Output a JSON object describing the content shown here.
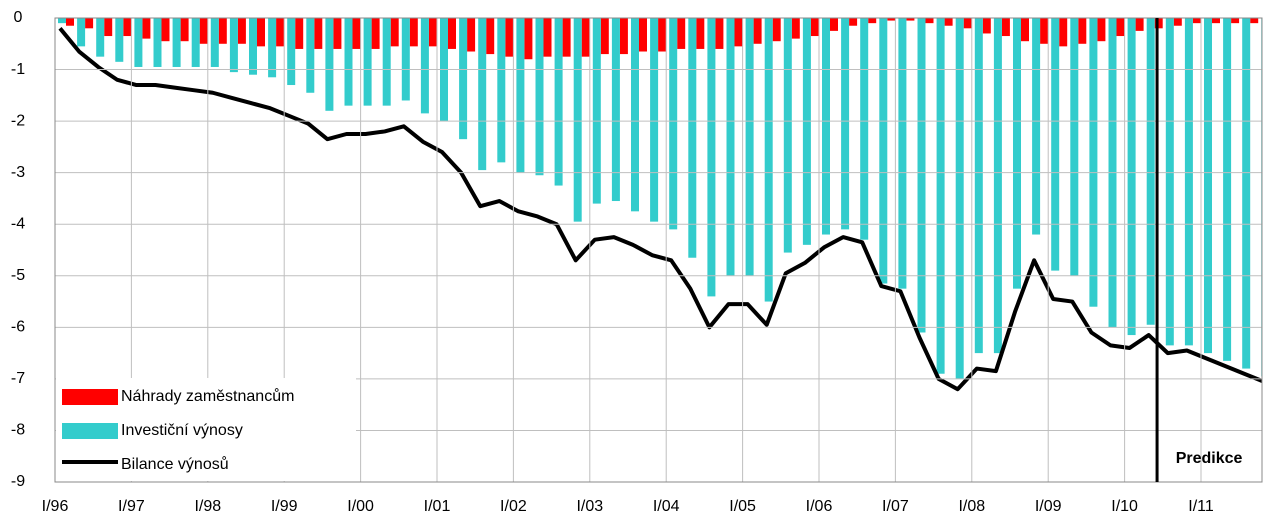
{
  "chart_data": {
    "type": "bar_line",
    "categories": [
      "I/96",
      null,
      null,
      null,
      "I/97",
      null,
      null,
      null,
      "I/98",
      null,
      null,
      null,
      "I/99",
      null,
      null,
      null,
      "I/00",
      null,
      null,
      null,
      "I/01",
      null,
      null,
      null,
      "I/02",
      null,
      null,
      null,
      "I/03",
      null,
      null,
      null,
      "I/04",
      null,
      null,
      null,
      "I/05",
      null,
      null,
      null,
      "I/06",
      null,
      null,
      null,
      "I/07",
      null,
      null,
      null,
      "I/08",
      null,
      null,
      null,
      "I/09",
      null,
      null,
      null,
      "I/10",
      null,
      null,
      null,
      "I/11",
      null,
      null,
      null
    ],
    "series": [
      {
        "name": "Náhrady zaměstnancům",
        "kind": "bar",
        "color": "#ff0000",
        "values": [
          -0.15,
          -0.2,
          -0.35,
          -0.35,
          -0.4,
          -0.45,
          -0.45,
          -0.5,
          -0.5,
          -0.5,
          -0.55,
          -0.55,
          -0.6,
          -0.6,
          -0.6,
          -0.6,
          -0.6,
          -0.55,
          -0.55,
          -0.55,
          -0.6,
          -0.65,
          -0.7,
          -0.75,
          -0.8,
          -0.75,
          -0.75,
          -0.75,
          -0.7,
          -0.7,
          -0.65,
          -0.65,
          -0.6,
          -0.6,
          -0.6,
          -0.55,
          -0.5,
          -0.45,
          -0.4,
          -0.35,
          -0.25,
          -0.15,
          -0.1,
          -0.05,
          -0.05,
          -0.1,
          -0.15,
          -0.2,
          -0.3,
          -0.35,
          -0.45,
          -0.5,
          -0.55,
          -0.5,
          -0.45,
          -0.35,
          -0.25,
          -0.2,
          -0.15,
          -0.1,
          -0.1,
          -0.1,
          -0.1,
          -0.1
        ]
      },
      {
        "name": "Investiční výnosy",
        "kind": "bar",
        "color": "#33cccc",
        "values": [
          -0.1,
          -0.55,
          -0.75,
          -0.85,
          -0.95,
          -0.95,
          -0.95,
          -0.95,
          -0.95,
          -1.05,
          -1.1,
          -1.15,
          -1.3,
          -1.45,
          -1.8,
          -1.7,
          -1.7,
          -1.7,
          -1.6,
          -1.85,
          -2.0,
          -2.35,
          -2.95,
          -2.8,
          -3.0,
          -3.05,
          -3.25,
          -3.95,
          -3.6,
          -3.55,
          -3.75,
          -3.95,
          -4.1,
          -4.65,
          -5.4,
          -5.0,
          -5.0,
          -5.5,
          -4.55,
          -4.4,
          -4.2,
          -4.1,
          -4.3,
          -5.15,
          -5.25,
          -6.1,
          -6.9,
          -7.0,
          -6.5,
          -6.5,
          -5.25,
          -4.2,
          -4.9,
          -5.0,
          -5.6,
          -6.0,
          -6.15,
          -5.95,
          -6.35,
          -6.35,
          -6.5,
          -6.65,
          -6.8,
          -6.95
        ]
      },
      {
        "name": "Bilance výnosů",
        "kind": "line",
        "color": "#000000",
        "values": [
          -0.2,
          -0.65,
          -0.95,
          -1.2,
          -1.3,
          -1.3,
          -1.35,
          -1.4,
          -1.45,
          -1.55,
          -1.65,
          -1.75,
          -1.9,
          -2.05,
          -2.35,
          -2.25,
          -2.25,
          -2.2,
          -2.1,
          -2.4,
          -2.6,
          -3.0,
          -3.65,
          -3.55,
          -3.75,
          -3.85,
          -4.0,
          -4.7,
          -4.3,
          -4.25,
          -4.4,
          -4.6,
          -4.7,
          -5.25,
          -6.0,
          -5.55,
          -5.55,
          -5.95,
          -4.95,
          -4.75,
          -4.45,
          -4.25,
          -4.35,
          -5.2,
          -5.3,
          -6.2,
          -7.0,
          -7.2,
          -6.8,
          -6.85,
          -5.7,
          -4.7,
          -5.45,
          -5.5,
          -6.1,
          -6.35,
          -6.4,
          -6.15,
          -6.5,
          -6.45,
          -6.6,
          -6.75,
          -6.9,
          -7.05
        ]
      }
    ],
    "ylim": [
      -9,
      0
    ],
    "yticks": [
      0,
      -1,
      -2,
      -3,
      -4,
      -5,
      -6,
      -7,
      -8,
      -9
    ],
    "grid": true,
    "legend": "lower left",
    "annotation": {
      "text": "Predikce",
      "x": 57.7
    }
  }
}
